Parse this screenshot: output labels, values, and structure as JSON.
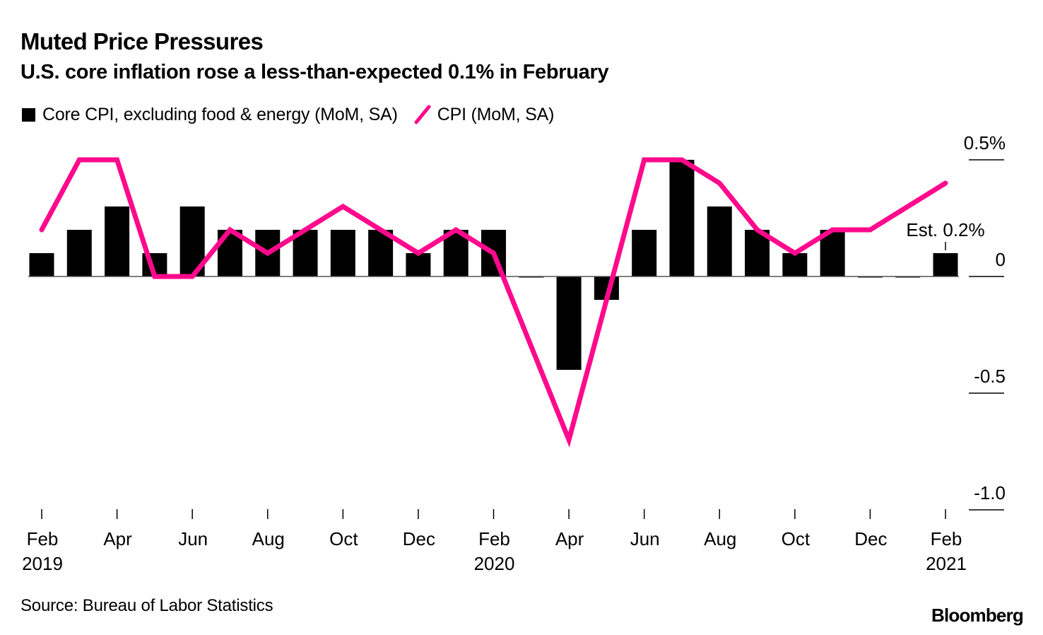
{
  "header": {
    "title": "Muted Price Pressures",
    "subtitle": "U.S. core inflation rose a less-than-expected 0.1% in February"
  },
  "legend": {
    "items": [
      {
        "label": "Core CPI, excluding food & energy (MoM, SA)",
        "kind": "bar",
        "color": "#000000"
      },
      {
        "label": "CPI (MoM, SA)",
        "kind": "line",
        "color": "#ff0a8c"
      }
    ]
  },
  "footer": {
    "source": "Source: Bureau of Labor Statistics",
    "brand": "Bloomberg"
  },
  "chart_data": {
    "type": "bar",
    "title": "Muted Price Pressures",
    "subtitle": "U.S. core inflation rose a less-than-expected 0.1% in February",
    "xlabel": "",
    "ylabel": "",
    "categories": [
      "Feb 2019",
      "Mar 2019",
      "Apr 2019",
      "May 2019",
      "Jun 2019",
      "Jul 2019",
      "Aug 2019",
      "Sep 2019",
      "Oct 2019",
      "Nov 2019",
      "Dec 2019",
      "Jan 2020",
      "Feb 2020",
      "Mar 2020",
      "Apr 2020",
      "May 2020",
      "Jun 2020",
      "Jul 2020",
      "Aug 2020",
      "Sep 2020",
      "Oct 2020",
      "Nov 2020",
      "Dec 2020",
      "Jan 2021",
      "Feb 2021"
    ],
    "series": [
      {
        "name": "Core CPI, excluding food & energy (MoM, SA)",
        "type": "bar",
        "color": "#000000",
        "values": [
          0.1,
          0.2,
          0.3,
          0.1,
          0.3,
          0.2,
          0.2,
          0.2,
          0.2,
          0.2,
          0.1,
          0.2,
          0.2,
          0.0,
          -0.4,
          -0.1,
          0.2,
          0.5,
          0.3,
          0.2,
          0.1,
          0.2,
          0.0,
          0.0,
          0.1
        ]
      },
      {
        "name": "CPI (MoM, SA)",
        "type": "line",
        "color": "#ff0a8c",
        "values": [
          0.2,
          0.5,
          0.5,
          0.0,
          0.0,
          0.2,
          0.1,
          0.2,
          0.3,
          0.2,
          0.1,
          0.2,
          0.1,
          -0.3,
          -0.7,
          -0.1,
          0.5,
          0.5,
          0.4,
          0.2,
          0.1,
          0.2,
          0.2,
          0.3,
          0.4
        ]
      }
    ],
    "ylim": [
      -1.0,
      0.5
    ],
    "yticks": [
      {
        "value": 0.5,
        "label": "0.5%"
      },
      {
        "value": 0,
        "label": "0"
      },
      {
        "value": -0.5,
        "label": "-0.5"
      },
      {
        "value": -1.0,
        "label": "-1.0"
      }
    ],
    "xticks": [
      {
        "index": 0,
        "label": "Feb",
        "sublabel": "2019"
      },
      {
        "index": 2,
        "label": "Apr",
        "sublabel": ""
      },
      {
        "index": 4,
        "label": "Jun",
        "sublabel": ""
      },
      {
        "index": 6,
        "label": "Aug",
        "sublabel": ""
      },
      {
        "index": 8,
        "label": "Oct",
        "sublabel": ""
      },
      {
        "index": 10,
        "label": "Dec",
        "sublabel": ""
      },
      {
        "index": 12,
        "label": "Feb",
        "sublabel": "2020"
      },
      {
        "index": 14,
        "label": "Apr",
        "sublabel": ""
      },
      {
        "index": 16,
        "label": "Jun",
        "sublabel": ""
      },
      {
        "index": 18,
        "label": "Aug",
        "sublabel": ""
      },
      {
        "index": 20,
        "label": "Oct",
        "sublabel": ""
      },
      {
        "index": 22,
        "label": "Dec",
        "sublabel": ""
      },
      {
        "index": 24,
        "label": "Feb",
        "sublabel": "2021"
      }
    ],
    "annotations": [
      {
        "index": 24,
        "text": "Est. 0.2%",
        "value": 0.2
      }
    ],
    "grid": false,
    "legend_position": "top-left"
  }
}
